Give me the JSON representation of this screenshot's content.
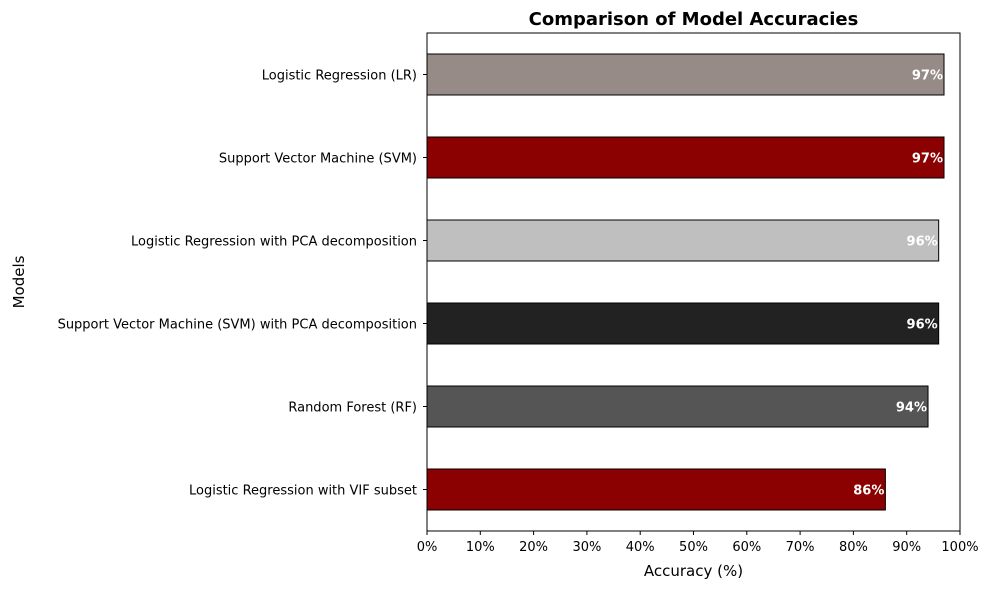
{
  "chart_data": {
    "type": "bar",
    "orientation": "horizontal",
    "title": "Comparison of Model Accuracies",
    "xlabel": "Accuracy (%)",
    "ylabel": "Models",
    "xlim": [
      0,
      100
    ],
    "xticks": [
      0,
      10,
      20,
      30,
      40,
      50,
      60,
      70,
      80,
      90,
      100
    ],
    "xtick_labels": [
      "0%",
      "10%",
      "20%",
      "30%",
      "40%",
      "50%",
      "60%",
      "70%",
      "80%",
      "90%",
      "100%"
    ],
    "grid": false,
    "legend": "none",
    "categories": [
      "Logistic Regression (LR)",
      "Support Vector Machine (SVM)",
      "Logistic Regression with PCA decomposition",
      "Support Vector Machine (SVM) with PCA decomposition",
      "Random Forest (RF)",
      "Logistic Regression with VIF subset"
    ],
    "values": [
      97,
      97,
      96,
      96,
      94,
      86
    ],
    "value_labels": [
      "97%",
      "97%",
      "96%",
      "96%",
      "94%",
      "86%"
    ],
    "colors": [
      "#968b87",
      "#8b0000",
      "#bfbfbf",
      "#222222",
      "#555555",
      "#8b0000"
    ],
    "bar_edge_color": "#000000",
    "data_label_color": "#ffffff"
  }
}
